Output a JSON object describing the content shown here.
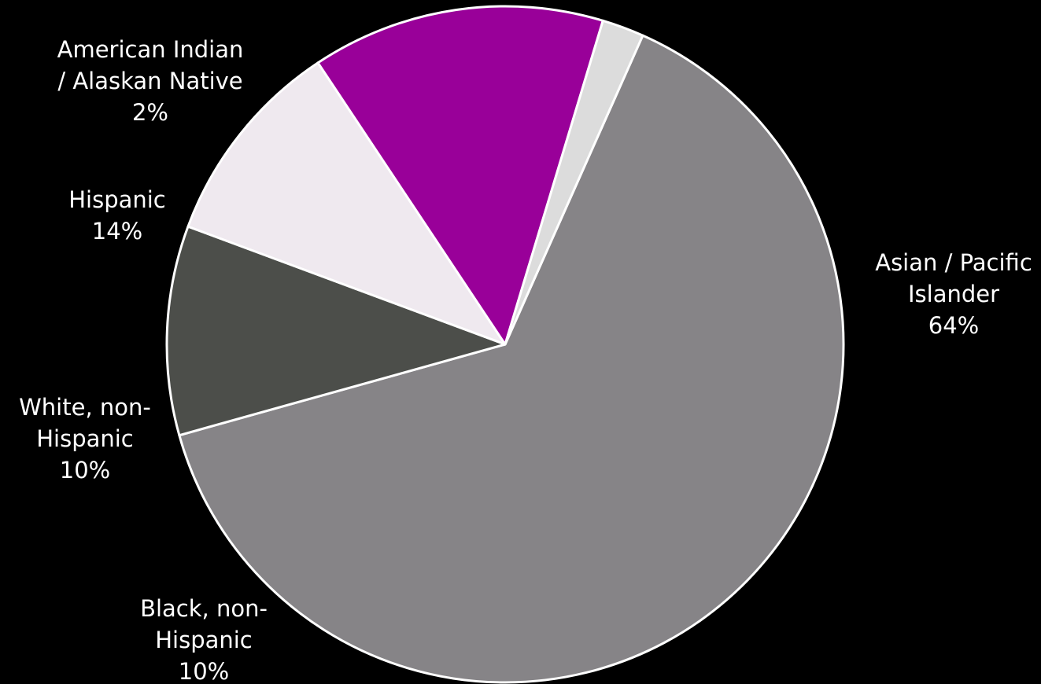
{
  "chart_data": {
    "type": "pie",
    "slices": [
      {
        "label_lines": [
          "Asian / Pacific",
          "Islander",
          "64%"
        ],
        "category": "Asian / Pacific Islander",
        "value": 64,
        "color": "#868487"
      },
      {
        "label_lines": [
          "Black, non-",
          "Hispanic",
          "10%"
        ],
        "category": "Black, non-Hispanic",
        "value": 10,
        "color": "#4c4e4a"
      },
      {
        "label_lines": [
          "White, non-",
          "Hispanic",
          "10%"
        ],
        "category": "White, non-Hispanic",
        "value": 10,
        "color": "#efe9ef"
      },
      {
        "label_lines": [
          "Hispanic",
          "14%"
        ],
        "category": "Hispanic",
        "value": 14,
        "color": "#990099"
      },
      {
        "label_lines": [
          "American Indian",
          "/ Alaskan Native",
          "2%"
        ],
        "category": "American Indian / Alaskan Native",
        "value": 2,
        "color": "#dcdcdc"
      }
    ],
    "background": "#000000",
    "border_color": "#ffffff",
    "legend": "none (direct labels)"
  }
}
